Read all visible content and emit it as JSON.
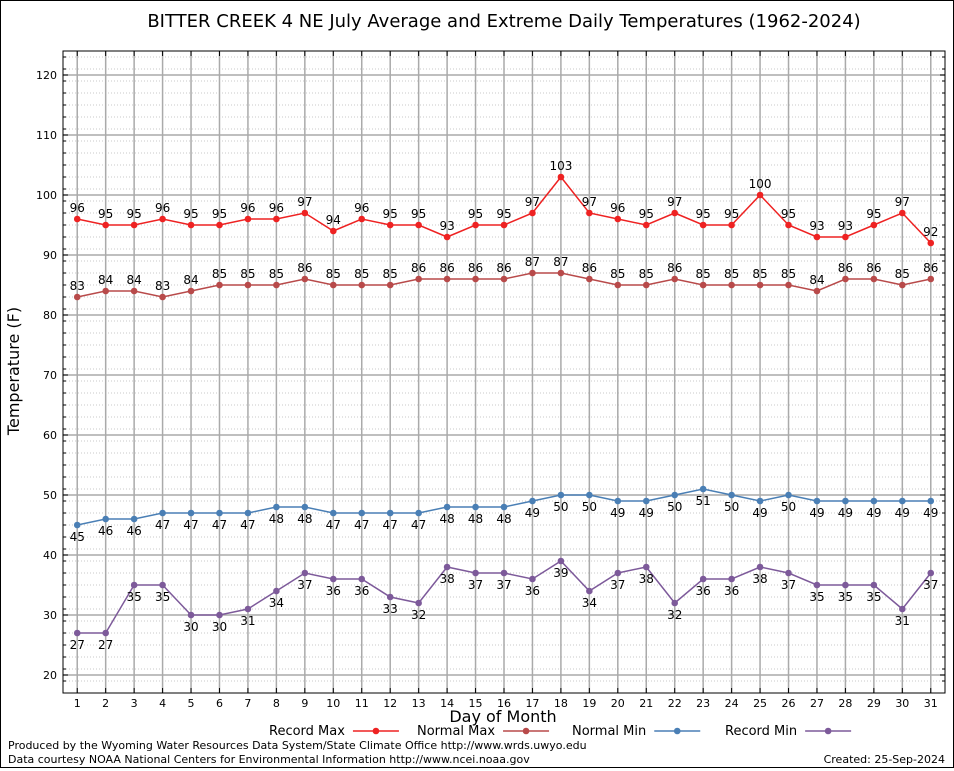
{
  "chart_data": {
    "type": "line",
    "title": "BITTER CREEK 4 NE July Average and Extreme Daily Temperatures (1962-2024)",
    "xlabel": "Day of Month",
    "ylabel": "Temperature (F)",
    "ylim": [
      17,
      124
    ],
    "yticks": [
      20,
      30,
      40,
      50,
      60,
      70,
      80,
      90,
      100,
      110,
      120
    ],
    "x": [
      1,
      2,
      3,
      4,
      5,
      6,
      7,
      8,
      9,
      10,
      11,
      12,
      13,
      14,
      15,
      16,
      17,
      18,
      19,
      20,
      21,
      22,
      23,
      24,
      25,
      26,
      27,
      28,
      29,
      30,
      31
    ],
    "grid": true,
    "legend_placement": "bottom",
    "series": [
      {
        "name": "Record Max",
        "color": "#ee2222",
        "values": [
          96,
          95,
          95,
          96,
          95,
          95,
          96,
          96,
          97,
          94,
          96,
          95,
          95,
          93,
          95,
          95,
          97,
          103,
          97,
          96,
          95,
          97,
          95,
          95,
          100,
          95,
          93,
          93,
          95,
          97,
          92
        ]
      },
      {
        "name": "Normal Max",
        "color": "#b84a4a",
        "values": [
          83,
          84,
          84,
          83,
          84,
          85,
          85,
          85,
          86,
          85,
          85,
          85,
          86,
          86,
          86,
          86,
          87,
          87,
          86,
          85,
          85,
          86,
          85,
          85,
          85,
          85,
          84,
          86,
          86,
          85,
          86
        ]
      },
      {
        "name": "Normal Min",
        "color": "#4a7fb5",
        "values": [
          45,
          46,
          46,
          47,
          47,
          47,
          47,
          48,
          48,
          47,
          47,
          47,
          47,
          48,
          48,
          48,
          49,
          50,
          50,
          49,
          49,
          50,
          51,
          50,
          49,
          50,
          49,
          49,
          49,
          49,
          49
        ]
      },
      {
        "name": "Record Min",
        "color": "#7d5a9a",
        "values": [
          27,
          27,
          35,
          35,
          30,
          30,
          31,
          34,
          37,
          36,
          36,
          33,
          32,
          38,
          37,
          37,
          36,
          39,
          34,
          37,
          38,
          32,
          36,
          36,
          38,
          37,
          35,
          35,
          35,
          31,
          37
        ]
      }
    ]
  },
  "footer": {
    "producer": "Produced by the Wyoming Water Resources Data System/State Climate Office http://www.wrds.uwyo.edu",
    "courtesy": "Data courtesy NOAA National Centers for Environmental Information http://www.ncei.noaa.gov",
    "created": "Created:  25-Sep-2024"
  }
}
